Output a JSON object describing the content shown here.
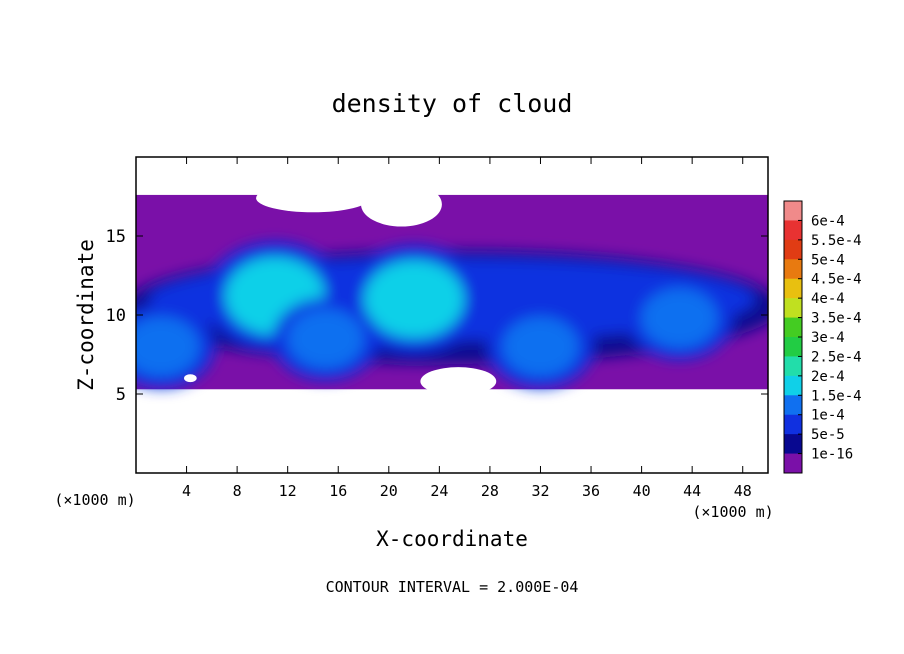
{
  "chart_data": {
    "type": "heatmap",
    "title": "density of cloud",
    "xlabel": "X-coordinate",
    "ylabel": "Z-coordinate",
    "x_unit": "(×1000 m)",
    "x_ticks": [
      4,
      8,
      12,
      16,
      20,
      24,
      28,
      32,
      36,
      40,
      44,
      48
    ],
    "y_ticks": [
      5,
      10,
      15
    ],
    "xlim": [
      0,
      50
    ],
    "ylim": [
      0,
      20
    ],
    "footer": "CONTOUR INTERVAL = 2.000E-04",
    "colorbar": {
      "labels": [
        "6e-4",
        "5.5e-4",
        "5e-4",
        "4.5e-4",
        "4e-4",
        "3.5e-4",
        "3e-4",
        "2.5e-4",
        "2e-4",
        "1.5e-4",
        "1e-4",
        "5e-5",
        "1e-16"
      ],
      "colors": [
        "#f08a8a",
        "#e83232",
        "#e03c14",
        "#e87a10",
        "#e8c010",
        "#c0e020",
        "#44cc22",
        "#22cc44",
        "#22ddaa",
        "#10d0e8",
        "#1070f0",
        "#1030e0",
        "#080890",
        "#7a10a8"
      ]
    },
    "cloud_layer": {
      "z_base": 5.3,
      "z_top": 17.6
    },
    "cores": [
      {
        "x": 11,
        "z": 11.2,
        "level": 0.00017
      },
      {
        "x": 22,
        "z": 11.0,
        "level": 0.00016
      },
      {
        "x": 15,
        "z": 8.5,
        "level": 0.00012
      },
      {
        "x": 32,
        "z": 8.0,
        "level": 0.00011
      },
      {
        "x": 43,
        "z": 9.8,
        "level": 0.0001
      },
      {
        "x": 2,
        "z": 8.0,
        "level": 0.0001
      }
    ]
  }
}
